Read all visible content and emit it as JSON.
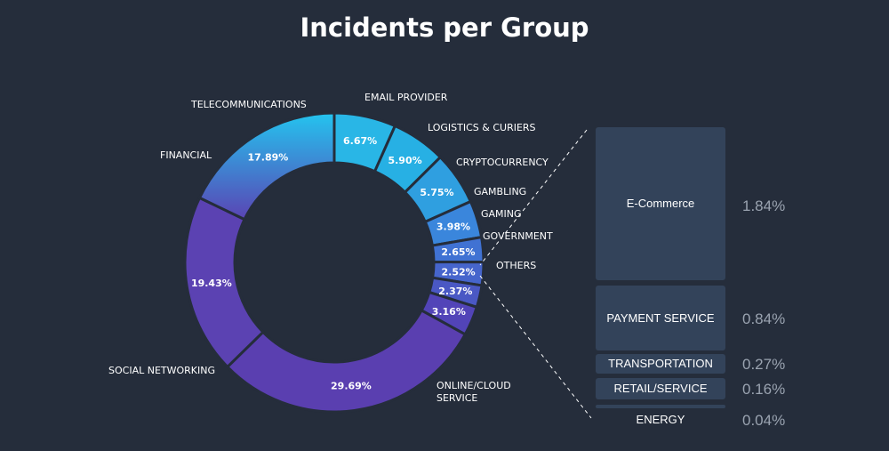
{
  "title": "Incidents per Group",
  "colors": {
    "background": "#252d3b",
    "box": "#33435a",
    "percent_text": "#9aa3b0"
  },
  "chart_data": [
    {
      "type": "pie",
      "title": "Incidents per Group",
      "slices": [
        {
          "label": "TELECOMMUNICATIONS",
          "value_label": "6.67%",
          "value": 6.67,
          "color": "#29b6e6"
        },
        {
          "label": "EMAIL PROVIDER",
          "value_label": "5.90%",
          "value": 5.9,
          "color": "#27b0e4"
        },
        {
          "label": "LOGISTICS & CURIERS",
          "value_label": "5.75%",
          "value": 5.75,
          "color": "#2f9fe0"
        },
        {
          "label": "CRYPTOCURRENCY",
          "value_label": "3.98%",
          "value": 3.98,
          "color": "#3a86dc"
        },
        {
          "label": "GAMBLING",
          "value_label": "2.65%",
          "value": 2.65,
          "color": "#4072d3"
        },
        {
          "label": "GAMING",
          "value_label": "2.52%",
          "value": 2.52,
          "color": "#4665cc"
        },
        {
          "label": "GOVERNMENT",
          "value_label": "2.37%",
          "value": 2.37,
          "color": "#4a58c4"
        },
        {
          "label": "OTHERS",
          "value_label": "3.16%",
          "value": 3.16,
          "color": "#5244b8"
        },
        {
          "label": "ONLINE/CLOUD SERVICE",
          "value_label": "29.69%",
          "value": 29.69,
          "color": "#5a3fb0"
        },
        {
          "label": "SOCIAL NETWORKING",
          "value_label": "19.43%",
          "value": 19.43,
          "color": "#5b42b2"
        },
        {
          "label": "FINANCIAL",
          "value_label": "17.89%",
          "value": 17.89,
          "color": "#31a3e3"
        }
      ]
    },
    {
      "type": "bar",
      "title": "",
      "categories": [
        "E-Commerce",
        "PAYMENT SERVICE",
        "TRANSPORTATION",
        "RETAIL/SERVICE",
        "ENERGY"
      ],
      "values": [
        1.84,
        0.84,
        0.27,
        0.16,
        0.04
      ],
      "value_labels": [
        "1.84%",
        "0.84%",
        "0.27%",
        "0.16%",
        "0.04%"
      ]
    }
  ]
}
